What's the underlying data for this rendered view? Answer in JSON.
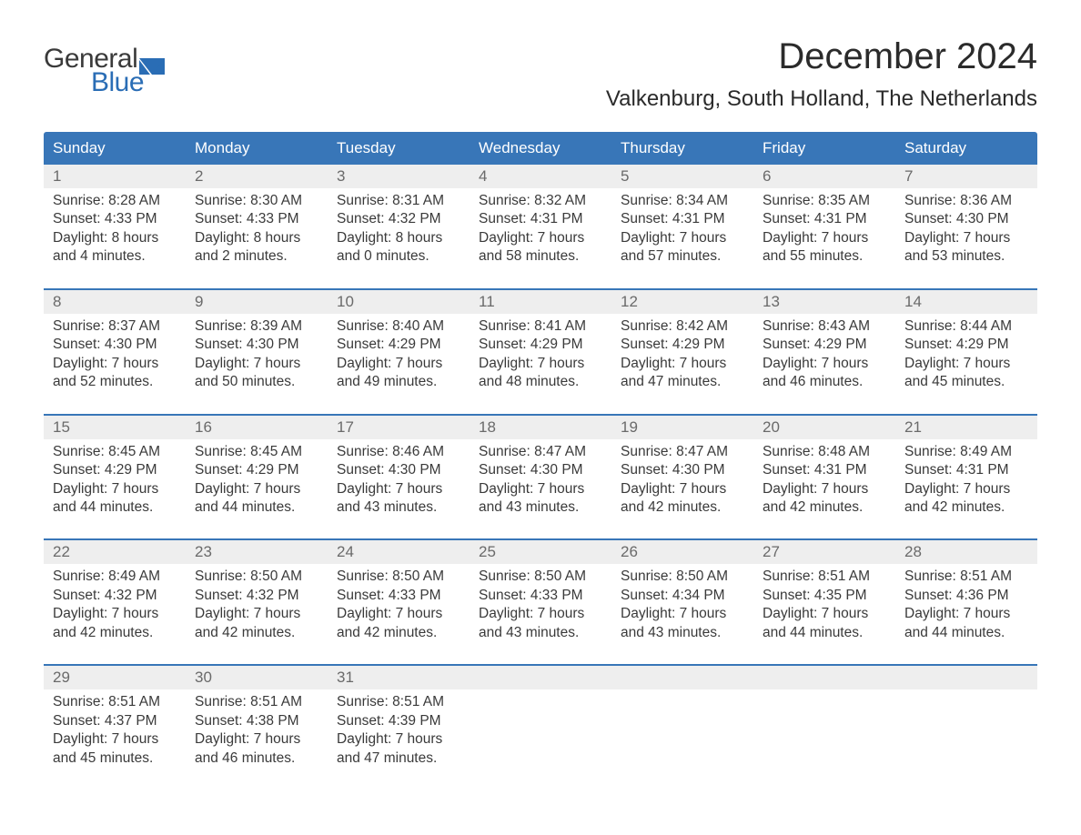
{
  "logo": {
    "text_general": "General",
    "text_blue": "Blue",
    "shape_color": "#2a6db5"
  },
  "title": "December 2024",
  "subtitle": "Valkenburg, South Holland, The Netherlands",
  "header_bg": "#3876b8",
  "header_fg": "#ffffff",
  "daynum_bg": "#eeeeee",
  "week_border": "#3876b8",
  "weekdays": [
    "Sunday",
    "Monday",
    "Tuesday",
    "Wednesday",
    "Thursday",
    "Friday",
    "Saturday"
  ],
  "weeks": [
    [
      {
        "n": "1",
        "sunrise": "Sunrise: 8:28 AM",
        "sunset": "Sunset: 4:33 PM",
        "d1": "Daylight: 8 hours",
        "d2": "and 4 minutes."
      },
      {
        "n": "2",
        "sunrise": "Sunrise: 8:30 AM",
        "sunset": "Sunset: 4:33 PM",
        "d1": "Daylight: 8 hours",
        "d2": "and 2 minutes."
      },
      {
        "n": "3",
        "sunrise": "Sunrise: 8:31 AM",
        "sunset": "Sunset: 4:32 PM",
        "d1": "Daylight: 8 hours",
        "d2": "and 0 minutes."
      },
      {
        "n": "4",
        "sunrise": "Sunrise: 8:32 AM",
        "sunset": "Sunset: 4:31 PM",
        "d1": "Daylight: 7 hours",
        "d2": "and 58 minutes."
      },
      {
        "n": "5",
        "sunrise": "Sunrise: 8:34 AM",
        "sunset": "Sunset: 4:31 PM",
        "d1": "Daylight: 7 hours",
        "d2": "and 57 minutes."
      },
      {
        "n": "6",
        "sunrise": "Sunrise: 8:35 AM",
        "sunset": "Sunset: 4:31 PM",
        "d1": "Daylight: 7 hours",
        "d2": "and 55 minutes."
      },
      {
        "n": "7",
        "sunrise": "Sunrise: 8:36 AM",
        "sunset": "Sunset: 4:30 PM",
        "d1": "Daylight: 7 hours",
        "d2": "and 53 minutes."
      }
    ],
    [
      {
        "n": "8",
        "sunrise": "Sunrise: 8:37 AM",
        "sunset": "Sunset: 4:30 PM",
        "d1": "Daylight: 7 hours",
        "d2": "and 52 minutes."
      },
      {
        "n": "9",
        "sunrise": "Sunrise: 8:39 AM",
        "sunset": "Sunset: 4:30 PM",
        "d1": "Daylight: 7 hours",
        "d2": "and 50 minutes."
      },
      {
        "n": "10",
        "sunrise": "Sunrise: 8:40 AM",
        "sunset": "Sunset: 4:29 PM",
        "d1": "Daylight: 7 hours",
        "d2": "and 49 minutes."
      },
      {
        "n": "11",
        "sunrise": "Sunrise: 8:41 AM",
        "sunset": "Sunset: 4:29 PM",
        "d1": "Daylight: 7 hours",
        "d2": "and 48 minutes."
      },
      {
        "n": "12",
        "sunrise": "Sunrise: 8:42 AM",
        "sunset": "Sunset: 4:29 PM",
        "d1": "Daylight: 7 hours",
        "d2": "and 47 minutes."
      },
      {
        "n": "13",
        "sunrise": "Sunrise: 8:43 AM",
        "sunset": "Sunset: 4:29 PM",
        "d1": "Daylight: 7 hours",
        "d2": "and 46 minutes."
      },
      {
        "n": "14",
        "sunrise": "Sunrise: 8:44 AM",
        "sunset": "Sunset: 4:29 PM",
        "d1": "Daylight: 7 hours",
        "d2": "and 45 minutes."
      }
    ],
    [
      {
        "n": "15",
        "sunrise": "Sunrise: 8:45 AM",
        "sunset": "Sunset: 4:29 PM",
        "d1": "Daylight: 7 hours",
        "d2": "and 44 minutes."
      },
      {
        "n": "16",
        "sunrise": "Sunrise: 8:45 AM",
        "sunset": "Sunset: 4:29 PM",
        "d1": "Daylight: 7 hours",
        "d2": "and 44 minutes."
      },
      {
        "n": "17",
        "sunrise": "Sunrise: 8:46 AM",
        "sunset": "Sunset: 4:30 PM",
        "d1": "Daylight: 7 hours",
        "d2": "and 43 minutes."
      },
      {
        "n": "18",
        "sunrise": "Sunrise: 8:47 AM",
        "sunset": "Sunset: 4:30 PM",
        "d1": "Daylight: 7 hours",
        "d2": "and 43 minutes."
      },
      {
        "n": "19",
        "sunrise": "Sunrise: 8:47 AM",
        "sunset": "Sunset: 4:30 PM",
        "d1": "Daylight: 7 hours",
        "d2": "and 42 minutes."
      },
      {
        "n": "20",
        "sunrise": "Sunrise: 8:48 AM",
        "sunset": "Sunset: 4:31 PM",
        "d1": "Daylight: 7 hours",
        "d2": "and 42 minutes."
      },
      {
        "n": "21",
        "sunrise": "Sunrise: 8:49 AM",
        "sunset": "Sunset: 4:31 PM",
        "d1": "Daylight: 7 hours",
        "d2": "and 42 minutes."
      }
    ],
    [
      {
        "n": "22",
        "sunrise": "Sunrise: 8:49 AM",
        "sunset": "Sunset: 4:32 PM",
        "d1": "Daylight: 7 hours",
        "d2": "and 42 minutes."
      },
      {
        "n": "23",
        "sunrise": "Sunrise: 8:50 AM",
        "sunset": "Sunset: 4:32 PM",
        "d1": "Daylight: 7 hours",
        "d2": "and 42 minutes."
      },
      {
        "n": "24",
        "sunrise": "Sunrise: 8:50 AM",
        "sunset": "Sunset: 4:33 PM",
        "d1": "Daylight: 7 hours",
        "d2": "and 42 minutes."
      },
      {
        "n": "25",
        "sunrise": "Sunrise: 8:50 AM",
        "sunset": "Sunset: 4:33 PM",
        "d1": "Daylight: 7 hours",
        "d2": "and 43 minutes."
      },
      {
        "n": "26",
        "sunrise": "Sunrise: 8:50 AM",
        "sunset": "Sunset: 4:34 PM",
        "d1": "Daylight: 7 hours",
        "d2": "and 43 minutes."
      },
      {
        "n": "27",
        "sunrise": "Sunrise: 8:51 AM",
        "sunset": "Sunset: 4:35 PM",
        "d1": "Daylight: 7 hours",
        "d2": "and 44 minutes."
      },
      {
        "n": "28",
        "sunrise": "Sunrise: 8:51 AM",
        "sunset": "Sunset: 4:36 PM",
        "d1": "Daylight: 7 hours",
        "d2": "and 44 minutes."
      }
    ],
    [
      {
        "n": "29",
        "sunrise": "Sunrise: 8:51 AM",
        "sunset": "Sunset: 4:37 PM",
        "d1": "Daylight: 7 hours",
        "d2": "and 45 minutes."
      },
      {
        "n": "30",
        "sunrise": "Sunrise: 8:51 AM",
        "sunset": "Sunset: 4:38 PM",
        "d1": "Daylight: 7 hours",
        "d2": "and 46 minutes."
      },
      {
        "n": "31",
        "sunrise": "Sunrise: 8:51 AM",
        "sunset": "Sunset: 4:39 PM",
        "d1": "Daylight: 7 hours",
        "d2": "and 47 minutes."
      },
      null,
      null,
      null,
      null
    ]
  ]
}
